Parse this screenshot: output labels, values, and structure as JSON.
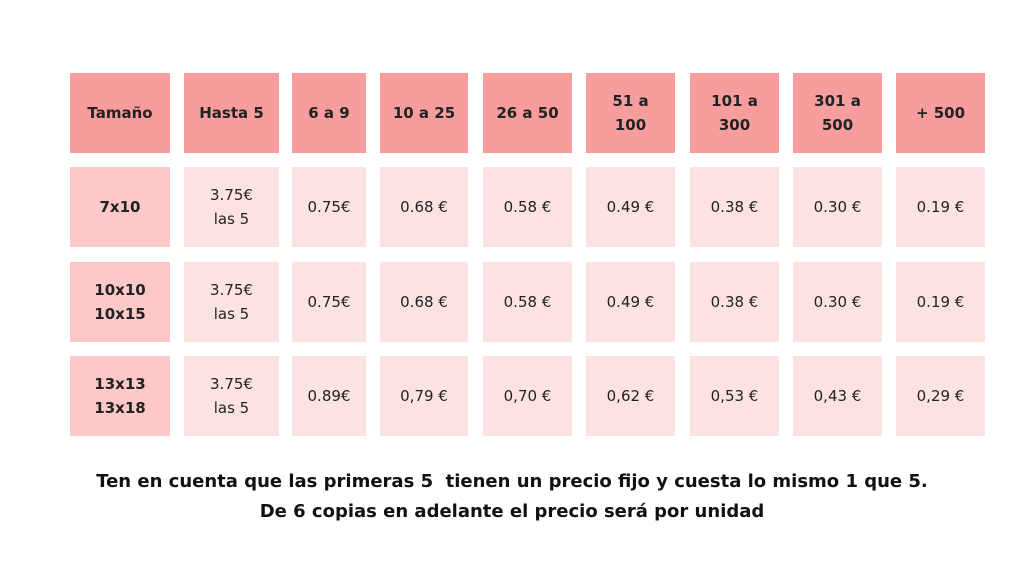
{
  "table": {
    "header": [
      "Tamaño",
      "Hasta 5",
      "6 a 9",
      "10 a 25",
      "26 a 50",
      "51 a\n100",
      "101 a\n300",
      "301 a\n500",
      "+ 500"
    ],
    "rows": [
      [
        "7x10",
        "3.75€\nlas 5",
        "0.75€",
        "0.68 €",
        "0.58 €",
        "0.49 €",
        "0.38 €",
        "0.30 €",
        "0.19 €"
      ],
      [
        "10x10\n10x15",
        "3.75€\nlas 5",
        "0.75€",
        "0.68 €",
        "0.58 €",
        "0.49 €",
        "0.38 €",
        "0.30 €",
        "0.19 €"
      ],
      [
        "13x13\n13x18",
        "3.75€\nlas 5",
        "0.89€",
        "0,79 €",
        "0,70 €",
        "0,62 €",
        "0,53 €",
        "0,43 €",
        "0,29 €"
      ]
    ]
  },
  "note": {
    "lines": [
      "Ten en cuenta que las primeras 5  tienen un precio fijo y cuesta lo mismo 1 que 5.",
      "De 6 copias en adelante el precio será por unidad"
    ]
  }
}
